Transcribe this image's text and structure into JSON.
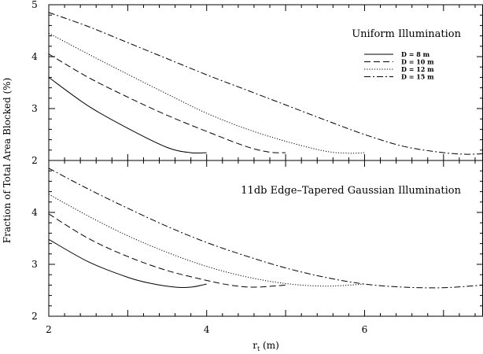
{
  "chart_data": [
    {
      "type": "line",
      "title": "Uniform Illumination",
      "xlabel": "r_t (m)",
      "ylabel": "Fraction of Total Area Blocked (%)",
      "xlim": [
        2,
        7.5
      ],
      "ylim": [
        2,
        5
      ],
      "yticks": [
        "2",
        "3",
        "4",
        "5"
      ],
      "xticks": [
        "2",
        "4",
        "6"
      ],
      "legend_position": "top-right",
      "series": [
        {
          "name": "D = 8 m",
          "style": "solid",
          "x": [
            2.0,
            2.5,
            3.0,
            3.5,
            3.8,
            4.0
          ],
          "y": [
            3.6,
            3.05,
            2.62,
            2.25,
            2.15,
            2.15
          ]
        },
        {
          "name": "D = 10 m",
          "style": "dashed",
          "x": [
            2.0,
            2.5,
            3.0,
            3.5,
            4.0,
            4.5,
            4.8,
            5.0
          ],
          "y": [
            4.05,
            3.6,
            3.22,
            2.87,
            2.56,
            2.27,
            2.16,
            2.15
          ]
        },
        {
          "name": "D = 12 m",
          "style": "dotted",
          "x": [
            2.0,
            2.5,
            3.0,
            3.5,
            4.0,
            4.5,
            5.0,
            5.5,
            5.8,
            6.0
          ],
          "y": [
            4.45,
            4.05,
            3.66,
            3.28,
            2.91,
            2.61,
            2.37,
            2.18,
            2.14,
            2.15
          ]
        },
        {
          "name": "D = 15 m",
          "style": "dashdot",
          "x": [
            2.0,
            2.5,
            3.0,
            3.5,
            4.0,
            4.5,
            5.0,
            5.5,
            6.0,
            6.5,
            7.0,
            7.3,
            7.5
          ],
          "y": [
            4.85,
            4.58,
            4.27,
            3.96,
            3.65,
            3.36,
            3.07,
            2.78,
            2.5,
            2.27,
            2.15,
            2.12,
            2.13
          ]
        }
      ]
    },
    {
      "type": "line",
      "title": "11db Edge–Tapered Gaussian Illumination",
      "xlabel": "r_t (m)",
      "ylabel": "Fraction of Total Area Blocked (%)",
      "xlim": [
        2,
        7.5
      ],
      "ylim": [
        2,
        5
      ],
      "yticks": [
        "2",
        "3",
        "4"
      ],
      "xticks": [
        "2",
        "4",
        "6"
      ],
      "series": [
        {
          "name": "D = 8 m",
          "style": "solid",
          "x": [
            2.0,
            2.5,
            3.0,
            3.3,
            3.6,
            3.8,
            4.0
          ],
          "y": [
            3.48,
            3.05,
            2.75,
            2.63,
            2.56,
            2.56,
            2.62
          ]
        },
        {
          "name": "D = 10 m",
          "style": "dashed",
          "x": [
            2.0,
            2.5,
            3.0,
            3.5,
            4.0,
            4.3,
            4.6,
            5.0
          ],
          "y": [
            3.97,
            3.5,
            3.15,
            2.88,
            2.69,
            2.6,
            2.56,
            2.6
          ]
        },
        {
          "name": "D = 12 m",
          "style": "dotted",
          "x": [
            2.0,
            2.5,
            3.0,
            3.5,
            4.0,
            4.5,
            5.0,
            5.5,
            6.0
          ],
          "y": [
            4.35,
            3.93,
            3.55,
            3.23,
            2.96,
            2.76,
            2.63,
            2.58,
            2.62
          ]
        },
        {
          "name": "D = 15 m",
          "style": "dashdot",
          "x": [
            2.0,
            2.5,
            3.0,
            3.5,
            4.0,
            4.5,
            5.0,
            5.5,
            6.0,
            6.5,
            7.0,
            7.5
          ],
          "y": [
            4.85,
            4.45,
            4.08,
            3.73,
            3.42,
            3.16,
            2.93,
            2.75,
            2.62,
            2.56,
            2.55,
            2.6
          ]
        }
      ]
    }
  ],
  "styles": {
    "solid": "none",
    "dashed": "8,4",
    "dotted": "1.2,2",
    "dashdot": "8,3,2,3"
  },
  "colors": {
    "line": "#000000",
    "background": "#ffffff"
  }
}
